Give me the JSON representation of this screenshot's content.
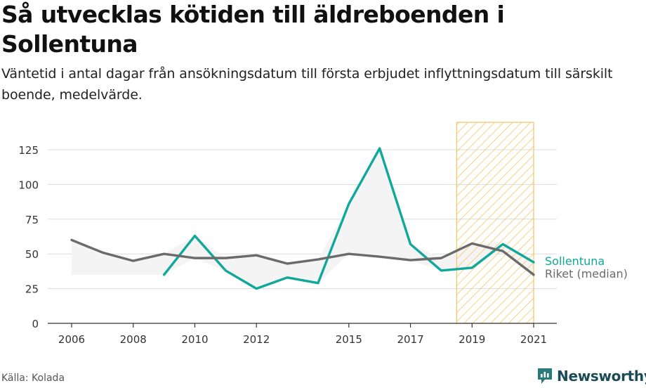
{
  "title": "Så utvecklas kötiden till äldreboenden i Sollentuna",
  "subtitle": "Väntetid i antal dagar från ansökningsdatum till första erbjudet inflyttningsdatum till särskilt boende, medelvärde.",
  "source": "Källa: Kolada",
  "brand": "Newsworthy",
  "colors": {
    "sollentuna": "#0fa89a",
    "riket": "#6b6b6b",
    "band": "#f4f4f4",
    "highlight": "#f7c25f",
    "grid": "#dcdcdc"
  },
  "chart_data": {
    "type": "line",
    "x_ticks": [
      2006,
      2008,
      2010,
      2012,
      2015,
      2017,
      2019,
      2021
    ],
    "xlim": [
      2006,
      2021
    ],
    "ylim": [
      0,
      125
    ],
    "y_ticks": [
      0,
      25,
      50,
      75,
      100,
      125
    ],
    "grid": true,
    "highlight_range": [
      2018.5,
      2021
    ],
    "series": [
      {
        "name": "Sollentuna",
        "x": [
          2009,
          2010,
          2011,
          2012,
          2013,
          2014,
          2015,
          2016,
          2017,
          2018,
          2019,
          2020,
          2021
        ],
        "y": [
          35,
          63,
          38,
          25,
          33,
          29,
          86,
          126,
          57,
          38,
          40,
          57,
          44
        ]
      },
      {
        "name": "Riket (median)",
        "x": [
          2006,
          2007,
          2008,
          2009,
          2010,
          2011,
          2012,
          2013,
          2014,
          2015,
          2016,
          2017,
          2018,
          2019,
          2020,
          2021
        ],
        "y": [
          60,
          51,
          45,
          50,
          47,
          47,
          49,
          43,
          46,
          50,
          48,
          45.5,
          47,
          57.5,
          52,
          35
        ]
      }
    ],
    "band_lower_note": "shaded area between the two series, baseline for 2006-2008",
    "band_base_2006_2009": 35
  }
}
